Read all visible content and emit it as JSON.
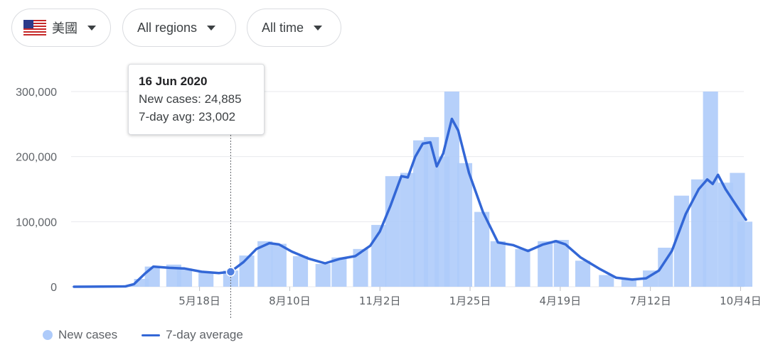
{
  "filters": {
    "country": {
      "label": "美國",
      "flag_icon": "us-flag-icon"
    },
    "region": {
      "label": "All regions"
    },
    "time": {
      "label": "All time"
    }
  },
  "tooltip": {
    "date": "16 Jun 2020",
    "new_cases_text": "New cases: 24,885",
    "avg_text": "7-day avg: 23,002"
  },
  "legend": {
    "new_cases": "New cases",
    "avg": "7-day average"
  },
  "colors": {
    "bars": "#aecbfa",
    "avg_line": "#3367d6",
    "grid": "#e8eaed",
    "axis_text": "#5f6368"
  },
  "chart_data": {
    "type": "bar",
    "title": "",
    "y_ticks": [
      {
        "value": 0,
        "label": "0"
      },
      {
        "value": 100000,
        "label": "100,000"
      },
      {
        "value": 200000,
        "label": "200,000"
      },
      {
        "value": 300000,
        "label": "300,000"
      }
    ],
    "x_ticks": [
      {
        "date": "2020-05-18",
        "label": "5月18日"
      },
      {
        "date": "2020-08-10",
        "label": "8月10日"
      },
      {
        "date": "2020-11-02",
        "label": "11月2日"
      },
      {
        "date": "2021-01-25",
        "label": "1月25日"
      },
      {
        "date": "2021-04-19",
        "label": "4月19日"
      },
      {
        "date": "2021-07-12",
        "label": "7月12日"
      },
      {
        "date": "2021-10-04",
        "label": "10月4日"
      }
    ],
    "x_range": [
      "2020-01-22",
      "2021-10-11"
    ],
    "ylim": [
      0,
      300000
    ],
    "grid": true,
    "legend_position": "bottom-left",
    "series": [
      {
        "name": "New cases",
        "kind": "bar",
        "values": [
          {
            "date": "2020-01-22",
            "value": 0
          },
          {
            "date": "2020-03-01",
            "value": 100
          },
          {
            "date": "2020-03-15",
            "value": 2500
          },
          {
            "date": "2020-03-25",
            "value": 12000
          },
          {
            "date": "2020-04-04",
            "value": 31000
          },
          {
            "date": "2020-04-24",
            "value": 34000
          },
          {
            "date": "2020-05-04",
            "value": 28000
          },
          {
            "date": "2020-05-24",
            "value": 22000
          },
          {
            "date": "2020-06-16",
            "value": 24885
          },
          {
            "date": "2020-07-01",
            "value": 48000
          },
          {
            "date": "2020-07-18",
            "value": 70000
          },
          {
            "date": "2020-07-31",
            "value": 66000
          },
          {
            "date": "2020-08-20",
            "value": 47000
          },
          {
            "date": "2020-09-10",
            "value": 35000
          },
          {
            "date": "2020-09-25",
            "value": 45000
          },
          {
            "date": "2020-10-15",
            "value": 58000
          },
          {
            "date": "2020-11-01",
            "value": 95000
          },
          {
            "date": "2020-11-14",
            "value": 170000
          },
          {
            "date": "2020-11-28",
            "value": 175000
          },
          {
            "date": "2020-12-10",
            "value": 225000
          },
          {
            "date": "2020-12-20",
            "value": 230000
          },
          {
            "date": "2020-12-30",
            "value": 200000
          },
          {
            "date": "2021-01-08",
            "value": 300000
          },
          {
            "date": "2021-01-20",
            "value": 190000
          },
          {
            "date": "2021-02-05",
            "value": 115000
          },
          {
            "date": "2021-02-20",
            "value": 70000
          },
          {
            "date": "2021-03-15",
            "value": 58000
          },
          {
            "date": "2021-04-05",
            "value": 70000
          },
          {
            "date": "2021-04-20",
            "value": 72000
          },
          {
            "date": "2021-05-10",
            "value": 40000
          },
          {
            "date": "2021-06-01",
            "value": 18000
          },
          {
            "date": "2021-06-22",
            "value": 13000
          },
          {
            "date": "2021-07-12",
            "value": 25000
          },
          {
            "date": "2021-07-26",
            "value": 60000
          },
          {
            "date": "2021-08-10",
            "value": 140000
          },
          {
            "date": "2021-08-26",
            "value": 165000
          },
          {
            "date": "2021-09-06",
            "value": 300000
          },
          {
            "date": "2021-09-20",
            "value": 160000
          },
          {
            "date": "2021-10-01",
            "value": 175000
          },
          {
            "date": "2021-10-08",
            "value": 100000
          }
        ]
      },
      {
        "name": "7-day average",
        "kind": "line",
        "values": [
          {
            "date": "2020-01-22",
            "value": 0
          },
          {
            "date": "2020-03-10",
            "value": 500
          },
          {
            "date": "2020-03-18",
            "value": 4000
          },
          {
            "date": "2020-03-28",
            "value": 20000
          },
          {
            "date": "2020-04-05",
            "value": 31000
          },
          {
            "date": "2020-04-20",
            "value": 29000
          },
          {
            "date": "2020-05-04",
            "value": 28000
          },
          {
            "date": "2020-05-20",
            "value": 23000
          },
          {
            "date": "2020-06-05",
            "value": 21000
          },
          {
            "date": "2020-06-16",
            "value": 23002
          },
          {
            "date": "2020-06-28",
            "value": 38000
          },
          {
            "date": "2020-07-10",
            "value": 58000
          },
          {
            "date": "2020-07-22",
            "value": 67000
          },
          {
            "date": "2020-07-31",
            "value": 65000
          },
          {
            "date": "2020-08-12",
            "value": 54000
          },
          {
            "date": "2020-08-28",
            "value": 43000
          },
          {
            "date": "2020-09-12",
            "value": 36000
          },
          {
            "date": "2020-09-26",
            "value": 43000
          },
          {
            "date": "2020-10-10",
            "value": 47000
          },
          {
            "date": "2020-10-24",
            "value": 63000
          },
          {
            "date": "2020-11-02",
            "value": 85000
          },
          {
            "date": "2020-11-12",
            "value": 125000
          },
          {
            "date": "2020-11-22",
            "value": 170000
          },
          {
            "date": "2020-11-28",
            "value": 168000
          },
          {
            "date": "2020-12-05",
            "value": 200000
          },
          {
            "date": "2020-12-12",
            "value": 220000
          },
          {
            "date": "2020-12-19",
            "value": 222000
          },
          {
            "date": "2020-12-25",
            "value": 185000
          },
          {
            "date": "2020-12-31",
            "value": 205000
          },
          {
            "date": "2021-01-08",
            "value": 258000
          },
          {
            "date": "2021-01-14",
            "value": 240000
          },
          {
            "date": "2021-01-24",
            "value": 175000
          },
          {
            "date": "2021-02-06",
            "value": 115000
          },
          {
            "date": "2021-02-20",
            "value": 68000
          },
          {
            "date": "2021-03-06",
            "value": 64000
          },
          {
            "date": "2021-03-20",
            "value": 55000
          },
          {
            "date": "2021-04-03",
            "value": 65000
          },
          {
            "date": "2021-04-15",
            "value": 70000
          },
          {
            "date": "2021-04-24",
            "value": 65000
          },
          {
            "date": "2021-05-08",
            "value": 45000
          },
          {
            "date": "2021-05-25",
            "value": 28000
          },
          {
            "date": "2021-06-10",
            "value": 14000
          },
          {
            "date": "2021-06-25",
            "value": 11000
          },
          {
            "date": "2021-07-08",
            "value": 13000
          },
          {
            "date": "2021-07-20",
            "value": 25000
          },
          {
            "date": "2021-08-01",
            "value": 55000
          },
          {
            "date": "2021-08-14",
            "value": 112000
          },
          {
            "date": "2021-08-26",
            "value": 150000
          },
          {
            "date": "2021-09-03",
            "value": 165000
          },
          {
            "date": "2021-09-08",
            "value": 158000
          },
          {
            "date": "2021-09-13",
            "value": 172000
          },
          {
            "date": "2021-09-20",
            "value": 150000
          },
          {
            "date": "2021-09-30",
            "value": 125000
          },
          {
            "date": "2021-10-09",
            "value": 103000
          }
        ]
      }
    ],
    "highlight": {
      "date": "2020-06-16",
      "value": 23002
    }
  }
}
